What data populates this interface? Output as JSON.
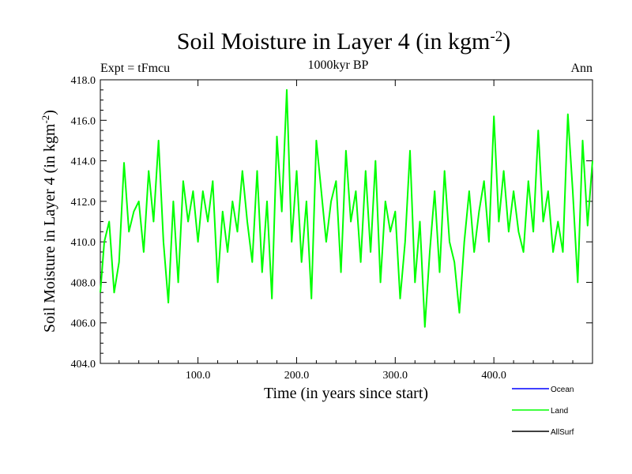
{
  "chart_data": {
    "type": "line",
    "title_main": "Soil Moisture in Layer 4 (in kgm",
    "title_sup": "-2",
    "title_close": ")",
    "subtitle": "1000kyr BP",
    "left_label": "Expt = tFmcu",
    "right_label": "Ann",
    "xlabel": "Time (in years since start)",
    "ylabel_main": "Soil Moisture in Layer 4 (in kgm",
    "ylabel_sup": "-2",
    "ylabel_close": ")",
    "xlim": [
      1,
      500
    ],
    "ylim": [
      404.0,
      418.0
    ],
    "xticks": [
      100,
      200,
      300,
      400
    ],
    "xtick_labels": [
      "100.0",
      "200.0",
      "300.0",
      "400.0"
    ],
    "yticks": [
      404,
      406,
      408,
      410,
      412,
      414,
      416,
      418
    ],
    "ytick_labels": [
      "404.0",
      "406.0",
      "408.0",
      "410.0",
      "412.0",
      "414.0",
      "416.0",
      "418.0"
    ],
    "legend_position": "bottom-right",
    "series": [
      {
        "name": "Ocean",
        "color": "#0000ff",
        "values": []
      },
      {
        "name": "Land",
        "color": "#00ff00",
        "x": [
          1,
          5,
          10,
          15,
          20,
          25,
          30,
          35,
          40,
          45,
          50,
          55,
          60,
          65,
          70,
          75,
          80,
          85,
          90,
          95,
          100,
          105,
          110,
          115,
          120,
          125,
          130,
          135,
          140,
          145,
          150,
          155,
          160,
          165,
          170,
          175,
          180,
          185,
          190,
          195,
          200,
          205,
          210,
          215,
          220,
          225,
          230,
          235,
          240,
          245,
          250,
          255,
          260,
          265,
          270,
          275,
          280,
          285,
          290,
          295,
          300,
          305,
          310,
          315,
          320,
          325,
          330,
          335,
          340,
          345,
          350,
          355,
          360,
          365,
          370,
          375,
          380,
          385,
          390,
          395,
          400,
          405,
          410,
          415,
          420,
          425,
          430,
          435,
          440,
          445,
          450,
          455,
          460,
          465,
          470,
          475,
          480,
          485,
          490,
          495,
          500
        ],
        "values": [
          407.5,
          410.0,
          411.0,
          407.5,
          409.0,
          413.9,
          410.5,
          411.5,
          412.0,
          409.5,
          413.5,
          411.0,
          415.0,
          410.0,
          407.0,
          412.0,
          408.0,
          413.0,
          411.0,
          412.5,
          410.0,
          412.5,
          411.0,
          413.0,
          408.0,
          411.5,
          409.5,
          412.0,
          410.5,
          413.5,
          411.0,
          409.0,
          413.5,
          408.5,
          412.0,
          407.2,
          415.2,
          411.5,
          417.5,
          410.0,
          413.5,
          409.0,
          412.0,
          407.2,
          415.0,
          412.5,
          410.0,
          412.0,
          413.0,
          408.5,
          414.5,
          411.0,
          412.5,
          409.0,
          413.5,
          409.5,
          414.0,
          408.0,
          412.0,
          410.5,
          411.5,
          407.2,
          410.0,
          414.5,
          408.0,
          411.0,
          405.8,
          409.5,
          412.5,
          408.5,
          413.5,
          410.0,
          409.0,
          406.5,
          410.0,
          412.5,
          409.5,
          411.5,
          413.0,
          410.0,
          416.2,
          411.0,
          413.5,
          410.5,
          412.5,
          410.5,
          409.5,
          413.0,
          410.5,
          415.5,
          411.0,
          412.5,
          409.5,
          411.0,
          409.5,
          416.3,
          412.5,
          408.0,
          415.0,
          410.8,
          414.0
        ]
      },
      {
        "name": "AllSurf",
        "color": "#000000",
        "values": []
      }
    ]
  }
}
